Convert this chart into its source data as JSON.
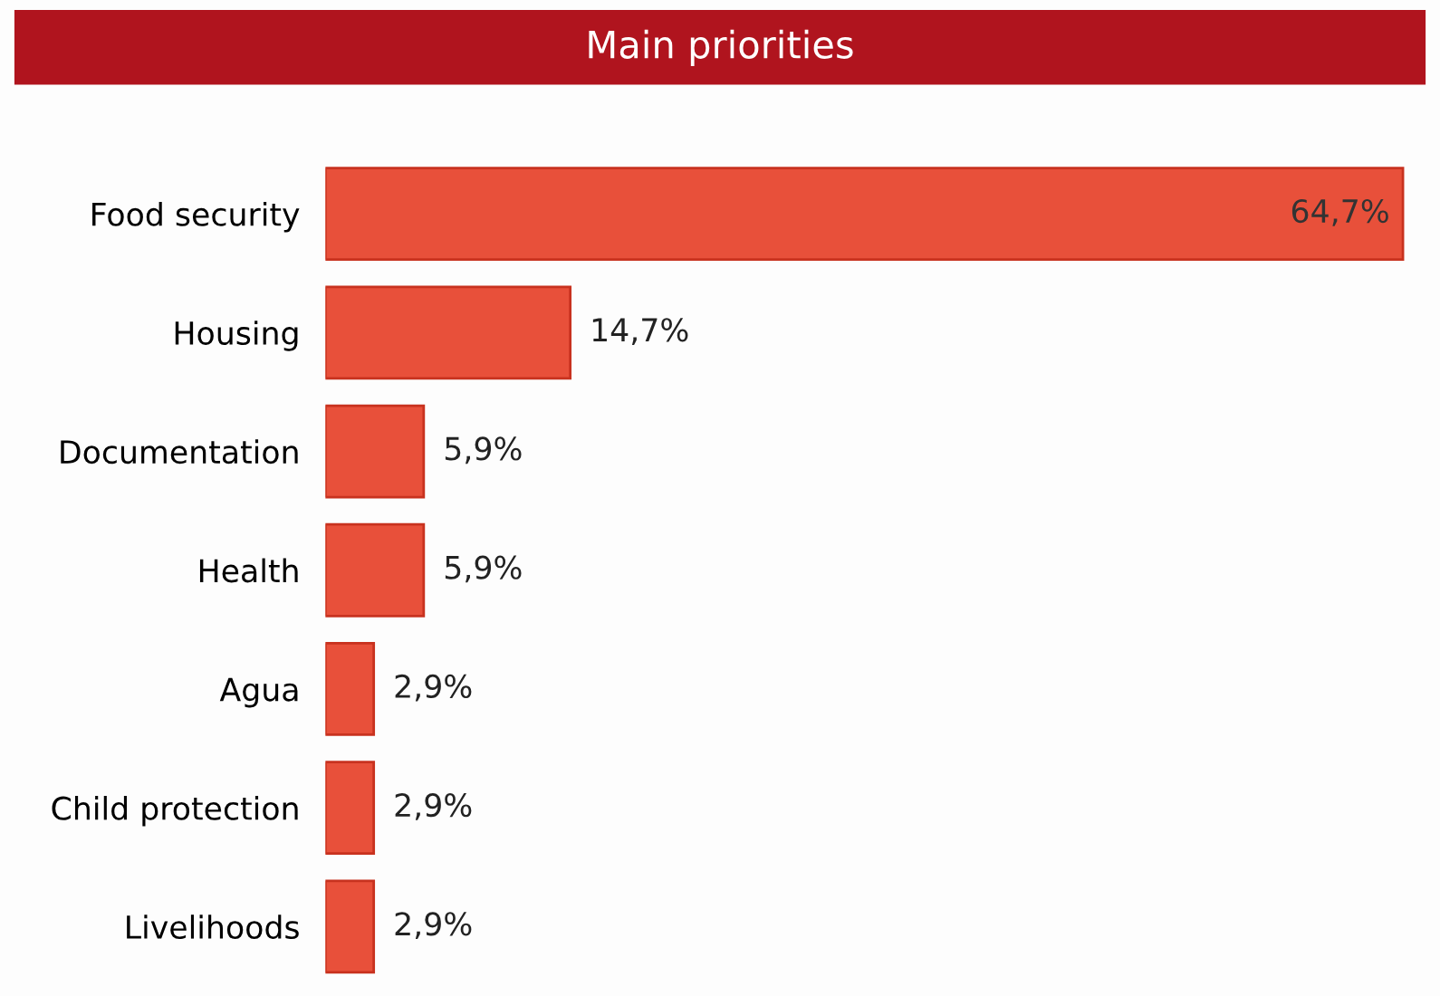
{
  "chart_data": {
    "type": "bar",
    "orientation": "horizontal",
    "title": "Main priorities",
    "categories": [
      "Food security",
      "Housing",
      "Documentation",
      "Health",
      "Agua",
      "Child protection",
      "Livelihoods"
    ],
    "values": [
      64.7,
      14.7,
      5.9,
      5.9,
      2.9,
      2.9,
      2.9
    ],
    "value_labels": [
      "64,7%",
      "14,7%",
      "5,9%",
      "5,9%",
      "2,9%",
      "2,9%",
      "2,9%"
    ],
    "color": "#e8503a",
    "grid": false,
    "legend": false
  }
}
